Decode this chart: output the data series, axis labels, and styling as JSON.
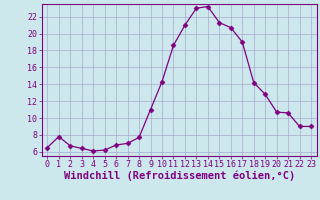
{
  "x": [
    0,
    1,
    2,
    3,
    4,
    5,
    6,
    7,
    8,
    9,
    10,
    11,
    12,
    13,
    14,
    15,
    16,
    17,
    18,
    19,
    20,
    21,
    22,
    23
  ],
  "y": [
    6.5,
    7.8,
    6.7,
    6.4,
    6.1,
    6.2,
    6.8,
    7.0,
    7.7,
    11.0,
    14.3,
    18.6,
    21.0,
    23.0,
    23.2,
    21.3,
    20.7,
    19.0,
    14.2,
    12.8,
    10.7,
    10.6,
    9.0,
    9.0
  ],
  "line_color": "#800080",
  "marker": "D",
  "marker_size": 2.5,
  "bg_color": "#cce8ec",
  "grid_color": "#aaaacc",
  "xlabel": "Windchill (Refroidissement éolien,°C)",
  "xlim": [
    -0.5,
    23.5
  ],
  "ylim": [
    5.5,
    23.5
  ],
  "yticks": [
    6,
    8,
    10,
    12,
    14,
    16,
    18,
    20,
    22
  ],
  "xticks": [
    0,
    1,
    2,
    3,
    4,
    5,
    6,
    7,
    8,
    9,
    10,
    11,
    12,
    13,
    14,
    15,
    16,
    17,
    18,
    19,
    20,
    21,
    22,
    23
  ],
  "xlabel_fontsize": 7.5,
  "tick_fontsize": 6.0
}
